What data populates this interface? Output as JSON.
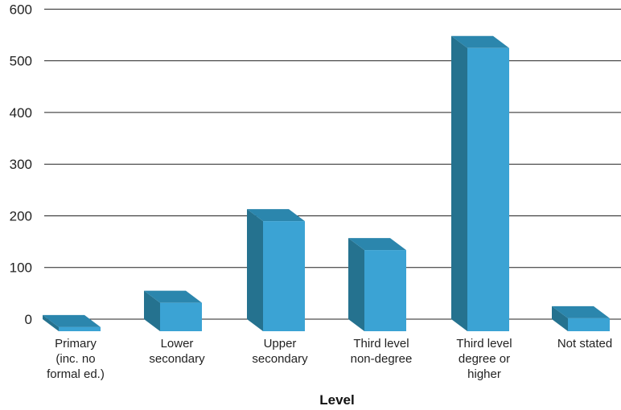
{
  "chart_data": {
    "type": "bar",
    "title": "",
    "xlabel": "Level",
    "ylabel": "",
    "categories": [
      [
        "Primary",
        "(inc. no",
        "formal ed.)"
      ],
      [
        "Lower",
        "secondary"
      ],
      [
        "Upper",
        "secondary"
      ],
      [
        "Third level",
        "non-degree"
      ],
      [
        "Third level",
        "degree or",
        "higher"
      ],
      [
        "Not stated"
      ]
    ],
    "values": [
      8,
      55,
      213,
      157,
      548,
      25
    ],
    "ylim": [
      0,
      600
    ],
    "yticks": [
      0,
      100,
      200,
      300,
      400,
      500,
      600
    ],
    "grid": true,
    "legend": "none",
    "colors": {
      "bar_front": "#3ba3d4",
      "bar_side": "#25728f",
      "bar_top": "#2b86ad",
      "grid": "#222222"
    }
  }
}
